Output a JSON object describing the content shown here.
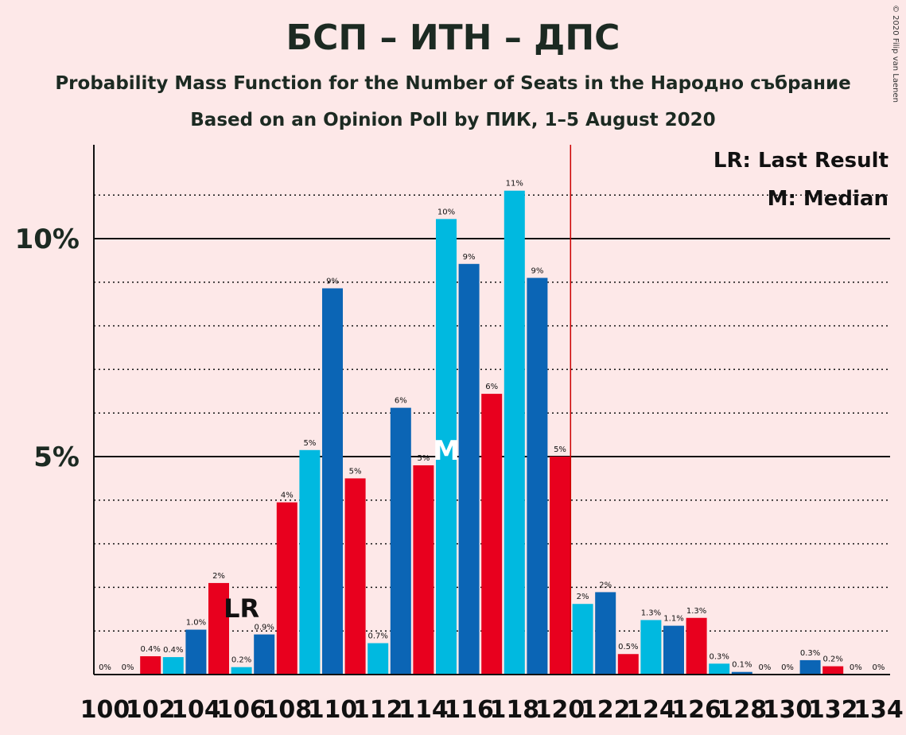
{
  "chart_data": {
    "type": "bar",
    "title": "БСП – ИТН – ДПС",
    "subtitle": "Probability Mass Function for the Number of Seats in the Народно събрание",
    "subtitle2": "Based on an Opinion Poll by ПИК, 1–5 August 2020",
    "copyright": "© 2020 Filip van Laenen",
    "xlabel": "",
    "ylabel": "",
    "ylim": [
      0,
      12
    ],
    "grid": true,
    "y_ticks": [
      {
        "value": 5,
        "label": "5%"
      },
      {
        "value": 10,
        "label": "10%"
      }
    ],
    "x_ticks": [
      {
        "value": 100,
        "label": "100"
      },
      {
        "value": 102,
        "label": "102"
      },
      {
        "value": 104,
        "label": "104"
      },
      {
        "value": 106,
        "label": "106"
      },
      {
        "value": 108,
        "label": "108"
      },
      {
        "value": 110,
        "label": "110"
      },
      {
        "value": 112,
        "label": "112"
      },
      {
        "value": 114,
        "label": "114"
      },
      {
        "value": 116,
        "label": "116"
      },
      {
        "value": 118,
        "label": "118"
      },
      {
        "value": 120,
        "label": "120"
      },
      {
        "value": 122,
        "label": "122"
      },
      {
        "value": 124,
        "label": "124"
      },
      {
        "value": 126,
        "label": "126"
      },
      {
        "value": 128,
        "label": "128"
      },
      {
        "value": 130,
        "label": "130"
      },
      {
        "value": 132,
        "label": "132"
      },
      {
        "value": 134,
        "label": "134"
      }
    ],
    "bars": [
      {
        "seats": 100,
        "value": 0.0,
        "label": "0%",
        "color": "#0b65b5"
      },
      {
        "seats": 101,
        "value": 0.0,
        "label": "0%",
        "color": "#e8001e"
      },
      {
        "seats": 102,
        "value": 0.42,
        "label": "0.4%",
        "color": "#e8001e"
      },
      {
        "seats": 103,
        "value": 0.4,
        "label": "0.4%",
        "color": "#00b9e0"
      },
      {
        "seats": 104,
        "value": 1.03,
        "label": "1.0%",
        "color": "#0b65b5"
      },
      {
        "seats": 105,
        "value": 2.1,
        "label": "2%",
        "color": "#e8001e"
      },
      {
        "seats": 106,
        "value": 0.17,
        "label": "0.2%",
        "color": "#00b9e0"
      },
      {
        "seats": 107,
        "value": 0.92,
        "label": "0.9%",
        "color": "#0b65b5"
      },
      {
        "seats": 108,
        "value": 3.95,
        "label": "4%",
        "color": "#e8001e"
      },
      {
        "seats": 109,
        "value": 5.15,
        "label": "5%",
        "color": "#00b9e0"
      },
      {
        "seats": 110,
        "value": 8.86,
        "label": "9%",
        "color": "#0b65b5"
      },
      {
        "seats": 111,
        "value": 4.5,
        "label": "5%",
        "color": "#e8001e"
      },
      {
        "seats": 112,
        "value": 0.72,
        "label": "0.7%",
        "color": "#00b9e0"
      },
      {
        "seats": 113,
        "value": 6.12,
        "label": "6%",
        "color": "#0b65b5"
      },
      {
        "seats": 114,
        "value": 4.8,
        "label": "5%",
        "color": "#e8001e"
      },
      {
        "seats": 115,
        "value": 10.45,
        "label": "10%",
        "color": "#00b9e0"
      },
      {
        "seats": 116,
        "value": 9.42,
        "label": "9%",
        "color": "#0b65b5"
      },
      {
        "seats": 117,
        "value": 6.44,
        "label": "6%",
        "color": "#e8001e"
      },
      {
        "seats": 118,
        "value": 11.1,
        "label": "11%",
        "color": "#00b9e0"
      },
      {
        "seats": 119,
        "value": 9.1,
        "label": "9%",
        "color": "#0b65b5"
      },
      {
        "seats": 120,
        "value": 5.0,
        "label": "5%",
        "color": "#e8001e"
      },
      {
        "seats": 121,
        "value": 1.62,
        "label": "2%",
        "color": "#00b9e0"
      },
      {
        "seats": 122,
        "value": 1.89,
        "label": "2%",
        "color": "#0b65b5"
      },
      {
        "seats": 123,
        "value": 0.47,
        "label": "0.5%",
        "color": "#e8001e"
      },
      {
        "seats": 124,
        "value": 1.25,
        "label": "1.3%",
        "color": "#00b9e0"
      },
      {
        "seats": 125,
        "value": 1.12,
        "label": "1.1%",
        "color": "#0b65b5"
      },
      {
        "seats": 126,
        "value": 1.3,
        "label": "1.3%",
        "color": "#e8001e"
      },
      {
        "seats": 127,
        "value": 0.25,
        "label": "0.3%",
        "color": "#00b9e0"
      },
      {
        "seats": 128,
        "value": 0.06,
        "label": "0.1%",
        "color": "#0b65b5"
      },
      {
        "seats": 129,
        "value": 0.0,
        "label": "0%",
        "color": "#e8001e"
      },
      {
        "seats": 130,
        "value": 0.0,
        "label": "0%",
        "color": "#00b9e0"
      },
      {
        "seats": 131,
        "value": 0.33,
        "label": "0.3%",
        "color": "#0b65b5"
      },
      {
        "seats": 132,
        "value": 0.19,
        "label": "0.2%",
        "color": "#e8001e"
      },
      {
        "seats": 133,
        "value": 0.0,
        "label": "0%",
        "color": "#00b9e0"
      },
      {
        "seats": 134,
        "value": 0.0,
        "label": "0%",
        "color": "#0b65b5"
      }
    ],
    "last_result": {
      "seats": 106,
      "label": "LR"
    },
    "median": {
      "seats": 115,
      "label": "M"
    },
    "majority_line": {
      "seats": 120.5,
      "color": "#cc0000"
    },
    "legend": {
      "placement": "top-right",
      "items": [
        "LR: Last Result",
        "M: Median"
      ]
    }
  }
}
